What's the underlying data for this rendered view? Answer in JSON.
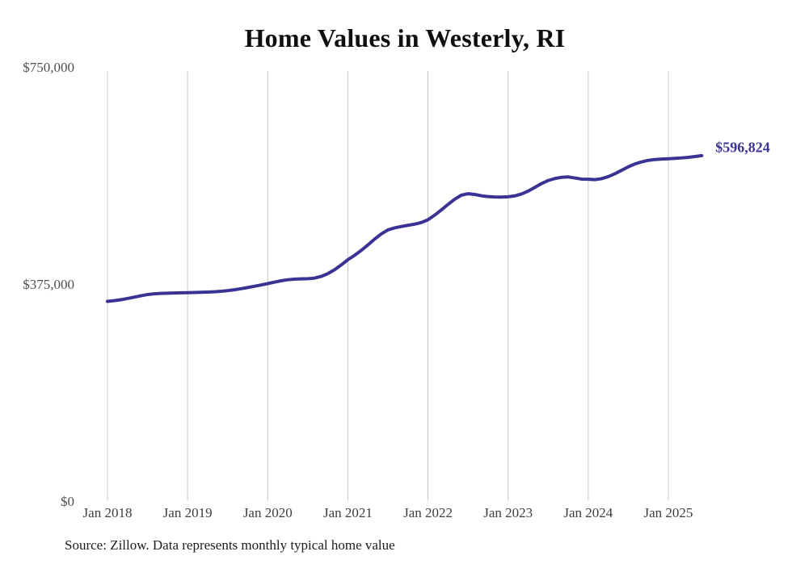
{
  "chart_data": {
    "type": "line",
    "title": "Home Values in Westerly, RI",
    "source_note": "Source: Zillow. Data represents monthly typical home value",
    "end_label": "$596,824",
    "final_value": 596824,
    "line_color": "#3a3394",
    "grid_color": "#c6c6c6",
    "axis_label_color": "#4f4f4f",
    "x_label_color": "#3d3d3d",
    "grid": "vertical-only",
    "legend": "none",
    "ylim": [
      0,
      750000
    ],
    "y_ticks": [
      {
        "value": 0,
        "label": "$0"
      },
      {
        "value": 375000,
        "label": "$375,000"
      },
      {
        "value": 750000,
        "label": "$750,000"
      }
    ],
    "x_tick_labels": [
      "Jan 2018",
      "Jan 2019",
      "Jan 2020",
      "Jan 2021",
      "Jan 2022",
      "Jan 2023",
      "Jan 2024",
      "Jan 2025"
    ],
    "months_per_x_tick": 12,
    "series": [
      {
        "name": "Monthly typical home value",
        "start": "Jan 2018",
        "end": "Jun 2025",
        "cadence": "monthly",
        "values": [
          345000,
          346200,
          347800,
          350000,
          352300,
          354700,
          356800,
          358100,
          358800,
          359200,
          359500,
          359800,
          360100,
          360400,
          360700,
          361100,
          361600,
          362400,
          363600,
          365100,
          366900,
          368900,
          371100,
          373400,
          375700,
          378200,
          380600,
          382400,
          383400,
          383900,
          384200,
          385200,
          388100,
          392900,
          399600,
          407900,
          417000,
          424500,
          433000,
          442500,
          452500,
          461500,
          468500,
          472000,
          474400,
          476400,
          478400,
          481200,
          486000,
          494000,
          503000,
          512500,
          521500,
          528500,
          531000,
          529800,
          527500,
          526000,
          525300,
          525200,
          525800,
          527200,
          530500,
          535500,
          542000,
          548500,
          553800,
          557300,
          559300,
          560000,
          558200,
          556300,
          556000,
          555400,
          557000,
          560500,
          565500,
          571500,
          577500,
          582500,
          586000,
          588700,
          590100,
          590900,
          591400,
          592100,
          592900,
          593900,
          595300,
          596824
        ]
      }
    ]
  }
}
